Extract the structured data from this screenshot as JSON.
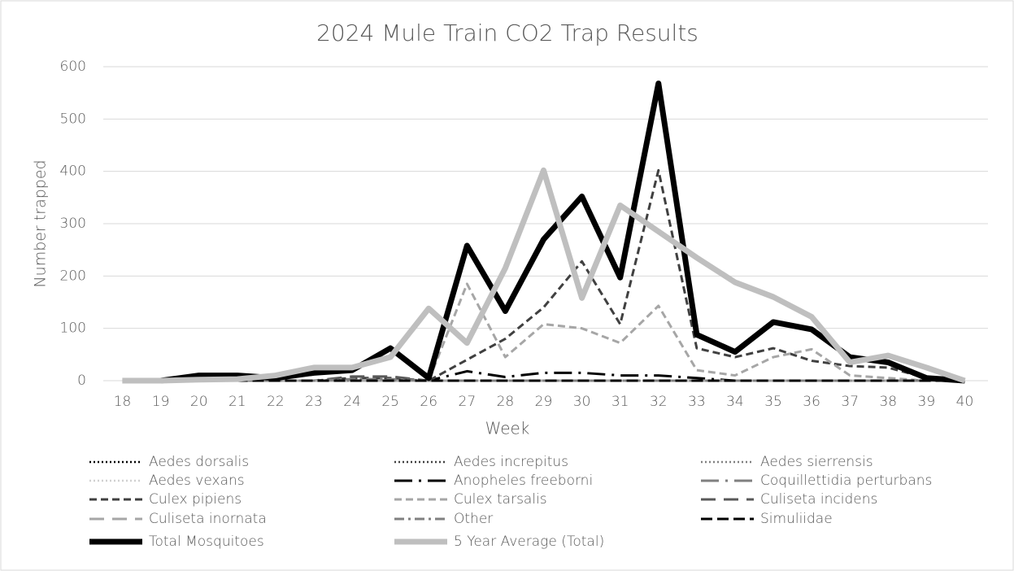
{
  "chart_data": {
    "type": "line",
    "title": "2024 Mule Train CO2 Trap Results",
    "x_label": "Week",
    "y_label": "Number trapped",
    "categories": [
      "18",
      "19",
      "20",
      "21",
      "22",
      "23",
      "24",
      "25",
      "26",
      "27",
      "28",
      "29",
      "30",
      "31",
      "32",
      "33",
      "34",
      "35",
      "36",
      "37",
      "38",
      "39",
      "40"
    ],
    "ylim": [
      0,
      600
    ],
    "yticks": [
      0,
      100,
      200,
      300,
      400,
      500,
      600
    ],
    "grid": true,
    "legend": "bottom",
    "series": [
      {
        "name": "Aedes dorsalis",
        "color": "#000000",
        "dash": "2 3",
        "width": 2.5,
        "values": [
          0,
          0,
          0,
          0,
          0,
          0,
          0,
          0,
          0,
          0,
          0,
          0,
          0,
          0,
          0,
          0,
          0,
          0,
          0,
          0,
          0,
          0,
          0
        ]
      },
      {
        "name": "Aedes increpitus",
        "color": "#404040",
        "dash": "2 3",
        "width": 2.5,
        "values": [
          0,
          0,
          0,
          0,
          0,
          0,
          0,
          0,
          0,
          0,
          0,
          0,
          0,
          0,
          0,
          0,
          0,
          0,
          0,
          0,
          0,
          0,
          0
        ]
      },
      {
        "name": "Aedes sierrensis",
        "color": "#808080",
        "dash": "2 3",
        "width": 2.5,
        "values": [
          0,
          0,
          0,
          0,
          0,
          0,
          0,
          0,
          0,
          0,
          0,
          0,
          0,
          0,
          0,
          0,
          0,
          0,
          0,
          0,
          0,
          0,
          0
        ]
      },
      {
        "name": "Aedes vexans",
        "color": "#d0d0d0",
        "dash": "2 3",
        "width": 2.5,
        "values": [
          0,
          0,
          0,
          0,
          0,
          0,
          0,
          0,
          0,
          0,
          0,
          0,
          0,
          0,
          0,
          0,
          0,
          0,
          0,
          0,
          0,
          0,
          0
        ]
      },
      {
        "name": "Anopheles freeborni",
        "color": "#000000",
        "dash": "22 8 3 8",
        "width": 3,
        "values": [
          0,
          0,
          0,
          0,
          0,
          0,
          0,
          0,
          0,
          18,
          7,
          15,
          15,
          10,
          10,
          5,
          0,
          0,
          0,
          0,
          0,
          0,
          0
        ]
      },
      {
        "name": "Coquillettidia perturbans",
        "color": "#808080",
        "dash": "22 8 3 8",
        "width": 3,
        "values": [
          0,
          0,
          0,
          0,
          0,
          0,
          0,
          0,
          0,
          0,
          0,
          0,
          0,
          0,
          0,
          0,
          0,
          0,
          0,
          0,
          0,
          0,
          0
        ]
      },
      {
        "name": "Culex pipiens",
        "color": "#404040",
        "dash": "9 5",
        "width": 3,
        "values": [
          0,
          0,
          0,
          0,
          0,
          0,
          5,
          5,
          0,
          40,
          80,
          140,
          228,
          108,
          402,
          62,
          45,
          62,
          38,
          28,
          25,
          5,
          0
        ]
      },
      {
        "name": "Culex tarsalis",
        "color": "#a6a6a6",
        "dash": "9 5",
        "width": 3,
        "values": [
          0,
          0,
          0,
          0,
          0,
          0,
          0,
          0,
          0,
          185,
          45,
          108,
          100,
          72,
          143,
          20,
          10,
          45,
          60,
          10,
          5,
          0,
          0
        ]
      },
      {
        "name": "Culiseta incidens",
        "color": "#595959",
        "dash": "18 10",
        "width": 3,
        "values": [
          0,
          0,
          0,
          0,
          0,
          0,
          8,
          8,
          0,
          0,
          0,
          0,
          0,
          0,
          0,
          0,
          0,
          0,
          0,
          0,
          0,
          0,
          0
        ]
      },
      {
        "name": "Culiseta inornata",
        "color": "#a6a6a6",
        "dash": "18 10",
        "width": 3,
        "values": [
          0,
          0,
          0,
          0,
          0,
          0,
          0,
          0,
          0,
          0,
          0,
          0,
          0,
          0,
          0,
          0,
          0,
          0,
          0,
          0,
          0,
          0,
          0
        ]
      },
      {
        "name": "Other",
        "color": "#808080",
        "dash": "12 5 3 5",
        "width": 3,
        "values": [
          0,
          0,
          0,
          0,
          0,
          0,
          3,
          3,
          0,
          0,
          0,
          0,
          0,
          0,
          0,
          0,
          0,
          0,
          0,
          0,
          0,
          0,
          0
        ]
      },
      {
        "name": "Simuliidae",
        "color": "#000000",
        "dash": "14 6",
        "width": 3,
        "values": [
          0,
          0,
          0,
          0,
          0,
          0,
          0,
          0,
          0,
          0,
          0,
          0,
          0,
          0,
          0,
          0,
          0,
          0,
          0,
          0,
          0,
          0,
          0
        ]
      },
      {
        "name": "Total Mosquitoes",
        "color": "#000000",
        "dash": "",
        "width": 7,
        "values": [
          0,
          0,
          10,
          10,
          5,
          15,
          20,
          62,
          5,
          258,
          133,
          270,
          352,
          197,
          568,
          88,
          55,
          112,
          98,
          45,
          35,
          5,
          0
        ]
      },
      {
        "name": "5 Year Average (Total)",
        "color": "#bfbfbf",
        "dash": "",
        "width": 7,
        "values": [
          0,
          0,
          2,
          3,
          10,
          25,
          25,
          45,
          138,
          72,
          215,
          402,
          158,
          335,
          285,
          235,
          188,
          160,
          122,
          35,
          48,
          25,
          0
        ]
      }
    ]
  }
}
